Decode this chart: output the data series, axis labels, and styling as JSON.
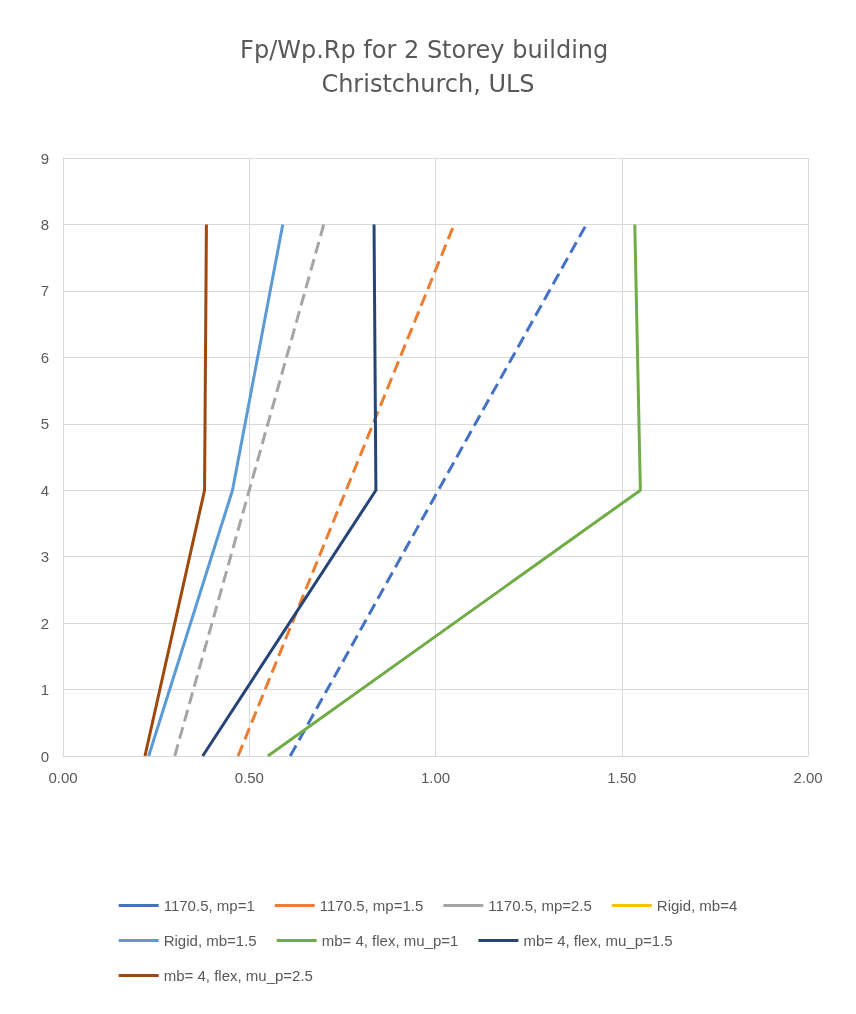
{
  "chart_data": {
    "type": "line",
    "title": "Fp/Wp.Rp for 2 Storey building Christchurch, ULS",
    "xlim": [
      0,
      2
    ],
    "xticks": [
      {
        "value": 0,
        "label": "0.00"
      },
      {
        "value": 0.5,
        "label": "0.50"
      },
      {
        "value": 1,
        "label": "1.00"
      },
      {
        "value": 1.5,
        "label": "1.50"
      },
      {
        "value": 2,
        "label": "2.00"
      }
    ],
    "ylim": [
      0,
      9
    ],
    "yticks": [
      0,
      1,
      2,
      3,
      4,
      5,
      6,
      7,
      8,
      9
    ],
    "grid": true,
    "legend": "bottom",
    "marker": "none",
    "series": [
      {
        "name": "1170.5, mp=1",
        "color": "#4472c4",
        "line_style": "dashed",
        "x": [
          0.61,
          1.405
        ],
        "values": [
          0,
          8
        ]
      },
      {
        "name": "1170.5, mp=1.5",
        "color": "#ed7d31",
        "line_style": "dashed",
        "x": [
          0.47,
          1.05
        ],
        "values": [
          0,
          8
        ]
      },
      {
        "name": "1170.5, mp=2.5",
        "color": "#a5a5a5",
        "line_style": "dashed",
        "x": [
          0.3,
          0.7
        ],
        "values": [
          0,
          8
        ]
      },
      {
        "name": "Rigid, mb=4",
        "color": "#ffc000",
        "line_style": "solid",
        "x": [
          null,
          null,
          null
        ],
        "values": [
          null,
          null,
          null
        ]
      },
      {
        "name": "Rigid, mb=1.5",
        "color": "#5b9bd5",
        "line_style": "solid",
        "x": [
          0.23,
          0.455,
          0.59
        ],
        "values": [
          0,
          4,
          8
        ]
      },
      {
        "name": "mb= 4, flex, mu_p=1",
        "color": "#70ad47",
        "line_style": "solid",
        "x": [
          0.55,
          1.55,
          1.535
        ],
        "values": [
          0,
          4,
          8
        ]
      },
      {
        "name": "mb= 4, flex, mu_p=1.5",
        "color": "#264478",
        "line_style": "solid",
        "x": [
          0.375,
          0.84,
          0.835
        ],
        "values": [
          0,
          4,
          8
        ]
      },
      {
        "name": "mb= 4, flex, mu_p=2.5",
        "color": "#9e480e",
        "line_style": "solid",
        "x": [
          0.22,
          0.38,
          0.385
        ],
        "values": [
          0,
          4,
          8
        ]
      }
    ]
  }
}
